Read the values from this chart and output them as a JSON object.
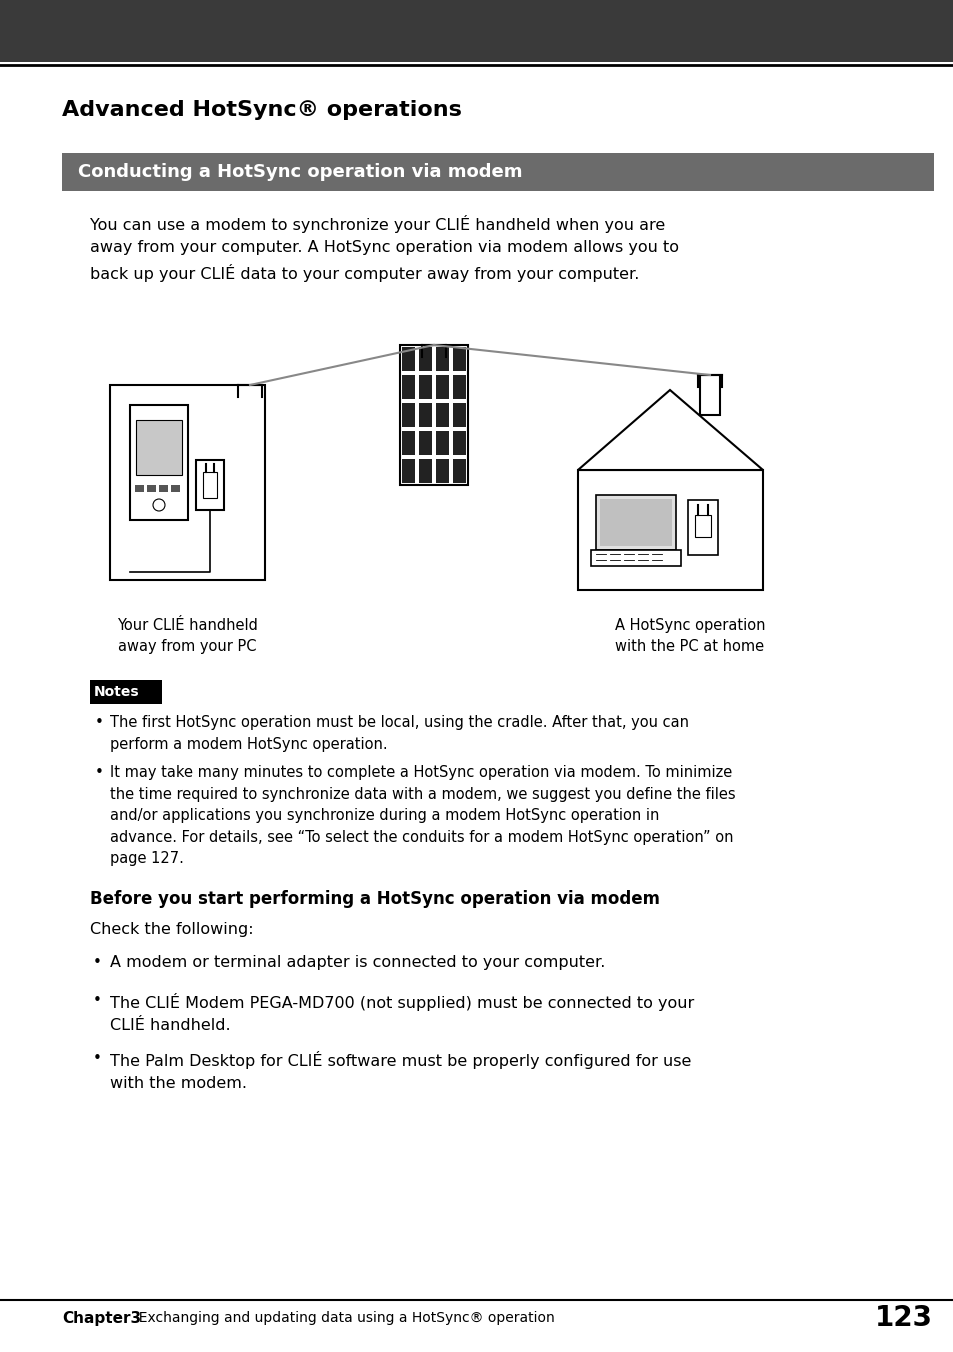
{
  "page_bg": "#ffffff",
  "header_bg": "#3a3a3a",
  "section_header_bg": "#6b6b6b",
  "title_text": "Advanced HotSync® operations",
  "section_header_text": "Conducting a HotSync operation via modem",
  "body_text_intro": "You can use a modem to synchronize your CLIÉ handheld when you are\naway from your computer. A HotSync operation via modem allows you to\nback up your CLIÉ data to your computer away from your computer.",
  "caption_left": "Your CLIÉ handheld\naway from your PC",
  "caption_right": "A HotSync operation\nwith the PC at home",
  "notes_label": "Notes",
  "notes_bullet1": "The first HotSync operation must be local, using the cradle. After that, you can\nperform a modem HotSync operation.",
  "notes_bullet2": "It may take many minutes to complete a HotSync operation via modem. To minimize\nthe time required to synchronize data with a modem, we suggest you define the files\nand/or applications you synchronize during a modem HotSync operation in\nadvance. For details, see “To select the conduits for a modem HotSync operation” on\npage 127.",
  "before_header": "Before you start performing a HotSync operation via modem",
  "before_intro": "Check the following:",
  "before_bullet1": "A modem or terminal adapter is connected to your computer.",
  "before_bullet2": "The CLIÉ Modem PEGA-MD700 (not supplied) must be connected to your\nCLIÉ handheld.",
  "before_bullet3": "The Palm Desktop for CLIÉ software must be properly configured for use\nwith the modem.",
  "footer_chapter": "Chapter3",
  "footer_desc": "  Exchanging and updating data using a HotSync® operation",
  "footer_page": "123",
  "text_color": "#000000",
  "white": "#ffffff"
}
